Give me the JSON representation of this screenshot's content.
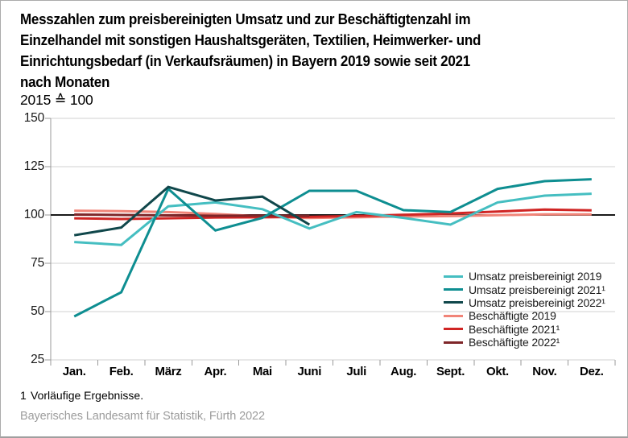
{
  "title_lines": [
    "Messzahlen zum preisbereinigten Umsatz und zur Beschäftigtenzahl im",
    "Einzelhandel mit sonstigen Haushaltsgeräten, Textilien, Heimwerker- und",
    "Einrichtungsbedarf (in Verkaufsräumen) in Bayern 2019 sowie seit 2021",
    "nach Monaten"
  ],
  "subtitle": "2015 ≙ 100",
  "footnote_marker": "1",
  "footnote_text": "Vorläufige Ergebnisse.",
  "source": "Bayerisches Landesamt für Statistik, Fürth 2022",
  "chart_data": {
    "type": "line",
    "categories": [
      "Jan.",
      "Feb.",
      "März",
      "Apr.",
      "Mai",
      "Juni",
      "Juli",
      "Aug.",
      "Sept.",
      "Okt.",
      "Nov.",
      "Dez."
    ],
    "y_ticks": [
      150,
      125,
      100,
      75,
      50,
      25
    ],
    "ylim": [
      25,
      150
    ],
    "baseline": 100,
    "grid": true,
    "legend_position": "inside-bottom-right",
    "axis_note": "index values, 2015 = 100",
    "series": [
      {
        "name": "Umsatz preisbereinigt 2019",
        "color": "#45bec1",
        "values": [
          86,
          84.5,
          104.5,
          106.5,
          103,
          93,
          101.5,
          98.5,
          95,
          106.5,
          110,
          111
        ]
      },
      {
        "name": "Umsatz preisbereinigt 2021¹",
        "color": "#0e8e91",
        "values": [
          47.5,
          60,
          113.5,
          92,
          98.5,
          112.5,
          112.5,
          102.5,
          101.5,
          113.5,
          117.5,
          118.5
        ]
      },
      {
        "name": "Umsatz preisbereinigt 2022¹",
        "color": "#10474b",
        "values": [
          89.5,
          93.5,
          114.5,
          107.5,
          109.5,
          95,
          null,
          null,
          null,
          null,
          null,
          null
        ]
      },
      {
        "name": "Beschäftigte 2019",
        "color": "#f18478",
        "values": [
          102.2,
          102,
          101.5,
          100.5,
          99.3,
          98.4,
          98.8,
          99.2,
          99.4,
          99.9,
          100.3,
          100.3
        ]
      },
      {
        "name": "Beschäftigte 2021¹",
        "color": "#d02524",
        "values": [
          98.3,
          97.9,
          98.3,
          98.7,
          98.8,
          99,
          99.5,
          100.1,
          100.8,
          101.8,
          102.8,
          102.4
        ]
      },
      {
        "name": "Beschäftigte 2022¹",
        "color": "#7e2629",
        "values": [
          100.2,
          100,
          99.8,
          99.6,
          99.7,
          99.6,
          null,
          null,
          null,
          null,
          null,
          null
        ]
      }
    ]
  }
}
